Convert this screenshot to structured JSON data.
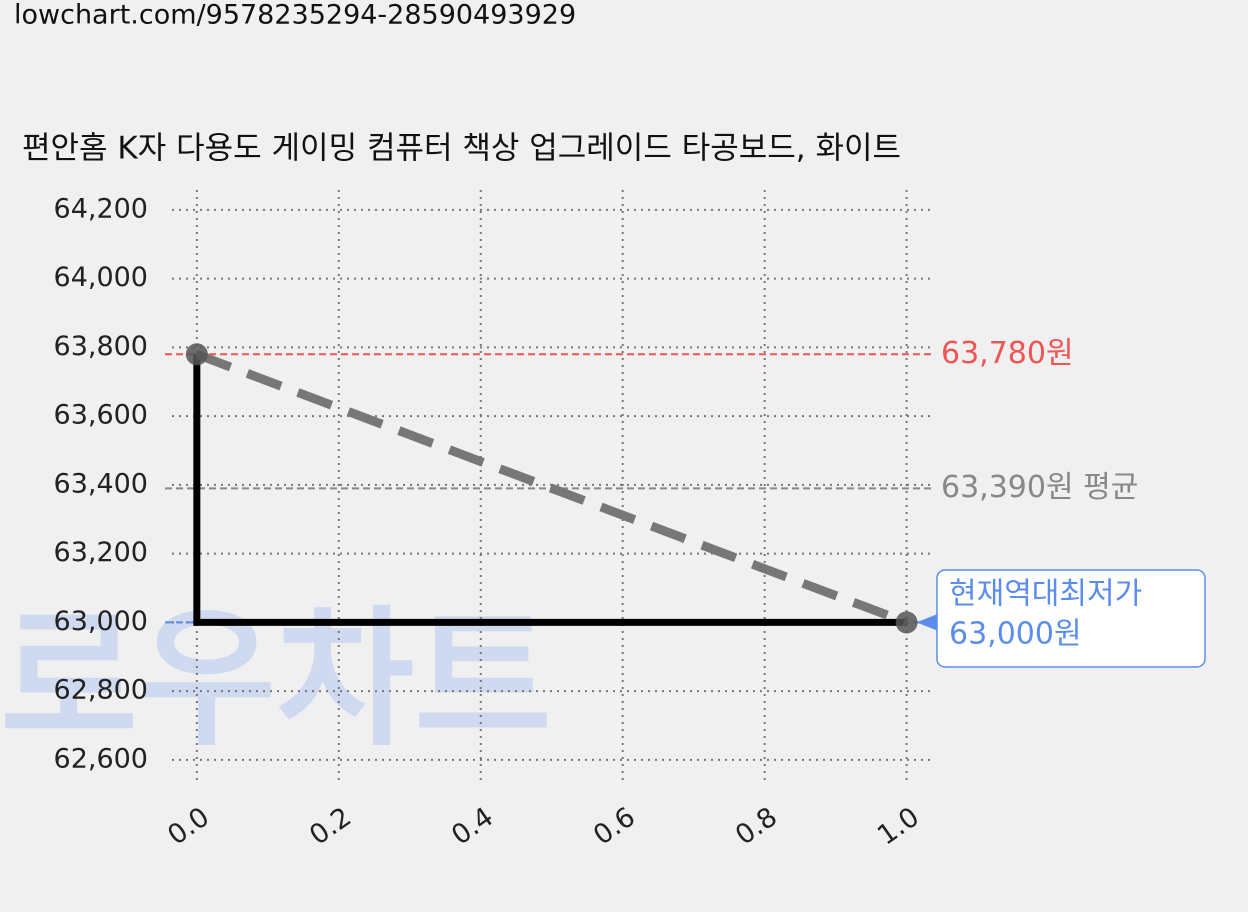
{
  "url": "lowchart.com/9578235294-28590493929",
  "chart_data": {
    "type": "line",
    "title": "편안홈 K자 다용도 게이밍 컴퓨터 책상 업그레이드 타공보드, 화이트",
    "watermark": "로우차트",
    "xlim": [
      -0.035,
      1.04
    ],
    "xticks": [
      {
        "value": 0,
        "label": "0.0"
      },
      0.2,
      0.4,
      0.6,
      0.8,
      {
        "value": 1,
        "label": "1.0"
      }
    ],
    "ylim": [
      62527,
      64258
    ],
    "yticks": [
      {
        "value": 62600,
        "label": "62,600"
      },
      {
        "value": 62800,
        "label": "62,800"
      },
      {
        "value": 63000,
        "label": "63,000"
      },
      {
        "value": 63200,
        "label": "63,200"
      },
      {
        "value": 63400,
        "label": "63,400"
      },
      {
        "value": 63600,
        "label": "63,600"
      },
      {
        "value": 63800,
        "label": "63,800"
      },
      {
        "value": 64000,
        "label": "64,000"
      },
      {
        "value": 64200,
        "label": "64,200"
      }
    ],
    "grid": true,
    "series": [
      {
        "style": "solid",
        "color": "#000000",
        "x": [
          0,
          0,
          1
        ],
        "values": [
          63780,
          63000,
          63000
        ]
      },
      {
        "style": "dashed",
        "color": "#777777",
        "x": [
          0,
          1
        ],
        "values": [
          63780,
          63000
        ]
      },
      {
        "style": "points",
        "color": "#555555",
        "x": [
          0,
          1
        ],
        "values": [
          63780,
          63000
        ]
      }
    ],
    "hlines": [
      {
        "value": 63780,
        "label": "63,780원",
        "color": "#f05454"
      },
      {
        "value": 63390,
        "label": "63,390원 평균",
        "color": "#888888"
      },
      {
        "value": 63000,
        "color": "#5b8def"
      }
    ],
    "annotation": {
      "x": 1,
      "value": 63000,
      "lines": [
        "현재역대최저가",
        "63,000원"
      ],
      "color": "#5b8def"
    }
  }
}
